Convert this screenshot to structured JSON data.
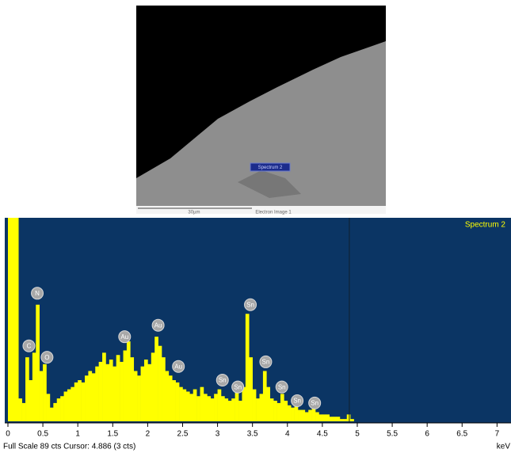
{
  "image": {
    "spectrum_label": "Spectrum 2",
    "scale_label": "30µm",
    "caption": "Electron Image 1"
  },
  "chart_data": {
    "type": "bar",
    "series_name": "Spectrum 2",
    "color": "#ffff00",
    "background": "#0b3564",
    "x": [
      0.025,
      0.075,
      0.125,
      0.175,
      0.225,
      0.275,
      0.325,
      0.375,
      0.425,
      0.475,
      0.525,
      0.575,
      0.625,
      0.675,
      0.725,
      0.775,
      0.825,
      0.875,
      0.925,
      0.975,
      1.025,
      1.075,
      1.125,
      1.175,
      1.225,
      1.275,
      1.325,
      1.375,
      1.425,
      1.475,
      1.525,
      1.575,
      1.625,
      1.675,
      1.725,
      1.775,
      1.825,
      1.875,
      1.925,
      1.975,
      2.025,
      2.075,
      2.125,
      2.175,
      2.225,
      2.275,
      2.325,
      2.375,
      2.425,
      2.475,
      2.525,
      2.575,
      2.625,
      2.675,
      2.725,
      2.775,
      2.825,
      2.875,
      2.925,
      2.975,
      3.025,
      3.075,
      3.125,
      3.175,
      3.225,
      3.275,
      3.325,
      3.375,
      3.425,
      3.475,
      3.525,
      3.575,
      3.625,
      3.675,
      3.725,
      3.775,
      3.825,
      3.875,
      3.925,
      3.975,
      4.025,
      4.075,
      4.125,
      4.175,
      4.225,
      4.275,
      4.325,
      4.375,
      4.425,
      4.475,
      4.525,
      4.575,
      4.625,
      4.675,
      4.725,
      4.775,
      4.825,
      4.875,
      4.925,
      4.975
    ],
    "bin_width": 0.05,
    "values": [
      89,
      89,
      89,
      10,
      8,
      28,
      18,
      30,
      51,
      22,
      25,
      12,
      6,
      8,
      10,
      11,
      13,
      14,
      15,
      17,
      18,
      17,
      20,
      22,
      21,
      24,
      26,
      30,
      25,
      27,
      24,
      29,
      26,
      31,
      35,
      28,
      22,
      20,
      24,
      27,
      25,
      30,
      37,
      33,
      28,
      22,
      20,
      18,
      17,
      15,
      14,
      13,
      12,
      14,
      11,
      15,
      12,
      11,
      10,
      12,
      14,
      11,
      10,
      9,
      10,
      13,
      9,
      15,
      47,
      28,
      14,
      10,
      12,
      22,
      15,
      10,
      9,
      8,
      12,
      9,
      7,
      6,
      7,
      5,
      5,
      4,
      5,
      6,
      4,
      3,
      3,
      3,
      2,
      2,
      2,
      1,
      1,
      3,
      1,
      0
    ],
    "xlim": [
      0,
      7.2
    ],
    "ylim": [
      0,
      89
    ],
    "xticks": [
      0,
      0.5,
      1,
      1.5,
      2,
      2.5,
      3,
      3.5,
      4,
      4.5,
      5,
      5.5,
      6,
      6.5,
      7
    ],
    "x_label": "keV",
    "cursor": 4.886,
    "status": "Full Scale 89 cts Cursor: 4.886  (3 cts)",
    "peaks": [
      {
        "label": "C",
        "x": 0.3,
        "y": 33
      },
      {
        "label": "N",
        "x": 0.42,
        "y": 56
      },
      {
        "label": "O",
        "x": 0.56,
        "y": 28
      },
      {
        "label": "Au",
        "x": 1.67,
        "y": 37
      },
      {
        "label": "Au",
        "x": 2.15,
        "y": 42
      },
      {
        "label": "Au",
        "x": 2.44,
        "y": 24
      },
      {
        "label": "Sn",
        "x": 3.07,
        "y": 18
      },
      {
        "label": "Sn",
        "x": 3.29,
        "y": 15
      },
      {
        "label": "Sn",
        "x": 3.47,
        "y": 51
      },
      {
        "label": "Sn",
        "x": 3.69,
        "y": 26
      },
      {
        "label": "Sn",
        "x": 3.92,
        "y": 15
      },
      {
        "label": "Sn",
        "x": 4.14,
        "y": 9
      },
      {
        "label": "Sn",
        "x": 4.39,
        "y": 8
      }
    ]
  }
}
